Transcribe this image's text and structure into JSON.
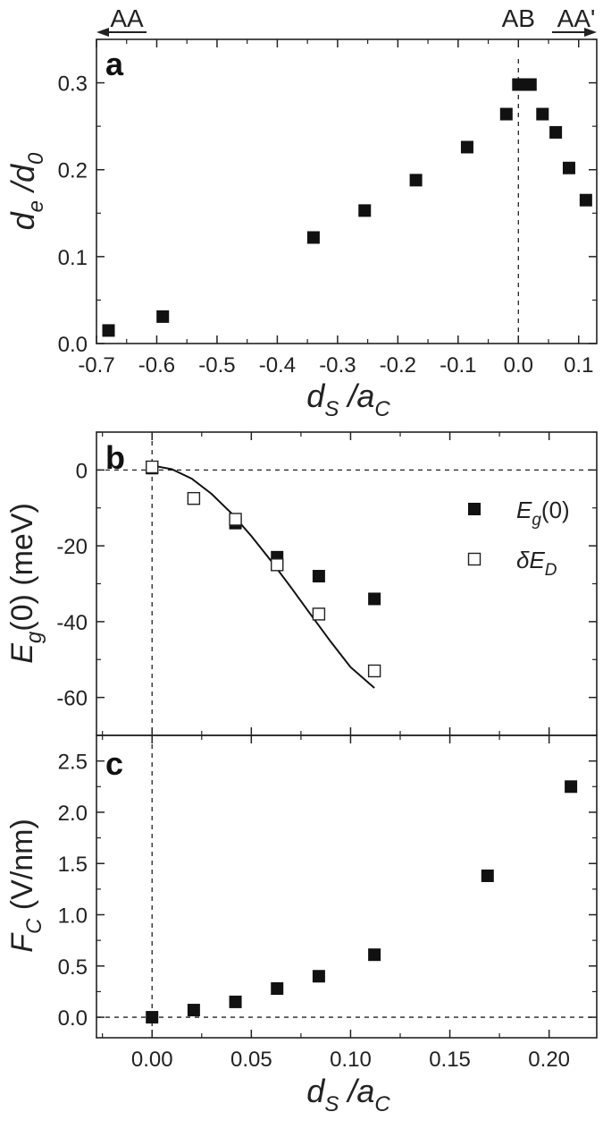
{
  "chart_data": [
    {
      "panel": "a",
      "type": "scatter",
      "xlim": [
        -0.7,
        0.13
      ],
      "ylim": [
        0.0,
        0.35
      ],
      "xticks": [
        -0.7,
        -0.6,
        -0.5,
        -0.4,
        -0.3,
        -0.2,
        -0.1,
        0.0,
        0.1
      ],
      "xtick_labels": [
        "-0.7",
        "-0.6",
        "-0.5",
        "-0.4",
        "-0.3",
        "-0.2",
        "-0.1",
        "0.0",
        "0.1"
      ],
      "yticks": [
        0.0,
        0.1,
        0.2,
        0.3
      ],
      "ytick_labels": [
        "0.0",
        "0.1",
        "0.2",
        "0.3"
      ],
      "xlabel": {
        "base1": "d",
        "sub1": "S",
        "sep": " /",
        "base2": "a",
        "sub2": "C"
      },
      "ylabel": {
        "base1": "d",
        "sub1": "e",
        "sep": " /",
        "base2": "d",
        "sub2": "0"
      },
      "vline_x": 0.0,
      "top_markers": [
        {
          "label": "AA",
          "arrow": "left"
        },
        {
          "label": "AB",
          "arrow": "none"
        },
        {
          "label": "AA'",
          "arrow": "right"
        }
      ],
      "series": [
        {
          "marker": "filled-square",
          "x": [
            -0.68,
            -0.59,
            -0.34,
            -0.255,
            -0.17,
            -0.085,
            -0.02,
            0.0,
            0.02,
            0.04,
            0.062,
            0.084,
            0.112
          ],
          "y": [
            0.015,
            0.031,
            0.122,
            0.153,
            0.188,
            0.226,
            0.264,
            0.298,
            0.298,
            0.264,
            0.243,
            0.202,
            0.165
          ]
        }
      ]
    },
    {
      "panel": "b",
      "type": "scatter",
      "xlim": [
        -0.028,
        0.224
      ],
      "ylim": [
        -70,
        10
      ],
      "yticks": [
        0,
        -20,
        -40,
        -60
      ],
      "ytick_labels": [
        "0",
        "-20",
        "-40",
        "-60"
      ],
      "ylabel": {
        "base": "E",
        "sub": "g",
        "rest": "(0) (meV)"
      },
      "hline_y": 0,
      "vline_x": 0,
      "legend_position": "right",
      "series": [
        {
          "marker": "filled-square",
          "legend": {
            "base": "E",
            "sub": "g",
            "rest": "(0)"
          },
          "x": [
            0.0,
            0.021,
            0.042,
            0.063,
            0.084,
            0.112
          ],
          "y": [
            0.5,
            -7.5,
            -14,
            -23,
            -28,
            -34
          ]
        },
        {
          "marker": "open-square",
          "legend": {
            "base": "δE",
            "sub": "D",
            "rest": ""
          },
          "x": [
            0.0,
            0.021,
            0.042,
            0.063,
            0.084,
            0.112
          ],
          "y": [
            0.8,
            -7.5,
            -13,
            -25,
            -38,
            -53
          ]
        },
        {
          "marker": "line",
          "x": [
            0.0,
            0.01,
            0.02,
            0.03,
            0.04,
            0.05,
            0.06,
            0.07,
            0.08,
            0.09,
            0.1,
            0.112
          ],
          "y": [
            1.2,
            0.2,
            -2.3,
            -6.3,
            -11.4,
            -17.4,
            -24.0,
            -31.0,
            -38.2,
            -45.3,
            -52.0,
            -57.5
          ]
        }
      ]
    },
    {
      "panel": "c",
      "type": "scatter",
      "xlim": [
        -0.028,
        0.224
      ],
      "ylim": [
        -0.2,
        2.75
      ],
      "xticks": [
        0.0,
        0.05,
        0.1,
        0.15,
        0.2
      ],
      "xtick_labels": [
        "0.00",
        "0.05",
        "0.10",
        "0.15",
        "0.20"
      ],
      "yticks": [
        0.0,
        0.5,
        1.0,
        1.5,
        2.0,
        2.5
      ],
      "ytick_labels": [
        "0.0",
        "0.5",
        "1.0",
        "1.5",
        "2.0",
        "2.5"
      ],
      "xlabel": {
        "base1": "d",
        "sub1": "S",
        "sep": " /",
        "base2": "a",
        "sub2": "C"
      },
      "ylabel": {
        "base": "F",
        "sub": "C",
        "rest": " (V/nm)"
      },
      "hline_y": 0,
      "vline_x": 0,
      "series": [
        {
          "marker": "filled-square",
          "x": [
            0.0,
            0.021,
            0.042,
            0.063,
            0.084,
            0.112,
            0.169,
            0.211
          ],
          "y": [
            0.0,
            0.07,
            0.15,
            0.28,
            0.4,
            0.61,
            1.38,
            2.25
          ]
        }
      ]
    }
  ]
}
